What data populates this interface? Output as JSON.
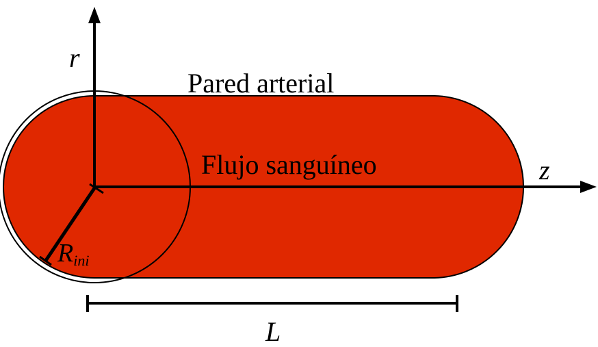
{
  "colors": {
    "fill": "#e02800",
    "stroke": "#000000",
    "background": "#ffffff"
  },
  "labels": {
    "wall": "Pared arterial",
    "flow": "Flujo sanguíneo",
    "r_axis": "r",
    "z_axis": "z",
    "radius_main": "R",
    "radius_sub": "ini",
    "length": "L"
  }
}
